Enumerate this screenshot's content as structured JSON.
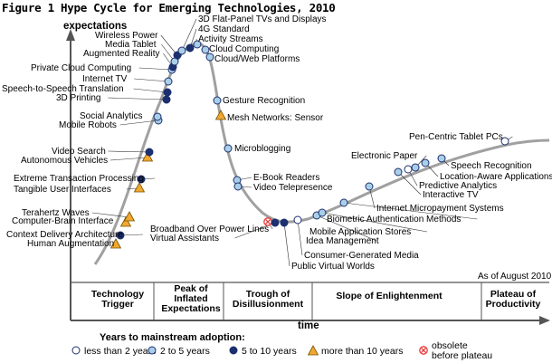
{
  "figure_title": "Figure 1 Hype Cycle for Emerging Technologies, 2010",
  "chart_data": {
    "type": "line",
    "title": "Figure 1 Hype Cycle for Emerging Technologies, 2010",
    "ylabel": "expectations",
    "xlabel": "time",
    "as_of": "As of August 2010",
    "phases": [
      "Technology Trigger",
      "Peak of Inflated Expectations",
      "Trough of Disillusionment",
      "Slope of Enlightenment",
      "Plateau of Productivity"
    ],
    "legend_title": "Years to mainstream adoption:",
    "legend": [
      {
        "key": "lt2",
        "label": "less than 2 years",
        "color": "#ffffff"
      },
      {
        "key": "2to5",
        "label": "2 to 5 years",
        "color": "#a9cfe8"
      },
      {
        "key": "5to10",
        "label": "5 to 10 years",
        "color": "#1c2f6e"
      },
      {
        "key": "gt10",
        "label": "more than 10 years",
        "color": "#f0a830"
      },
      {
        "key": "obsolete",
        "label": "obsolete before plateau",
        "color": "#e83a3a"
      }
    ],
    "series": [
      {
        "label": "Human Augmentation",
        "cat": "gt10"
      },
      {
        "label": "Context Delivery Architecture",
        "cat": "5to10"
      },
      {
        "label": "Computer-Brain Interface",
        "cat": "gt10"
      },
      {
        "label": "Terahertz Waves",
        "cat": "gt10"
      },
      {
        "label": "Tangible User Interfaces",
        "cat": "gt10"
      },
      {
        "label": "Extreme Transaction Processing",
        "cat": "5to10"
      },
      {
        "label": "Autonomous Vehicles",
        "cat": "gt10"
      },
      {
        "label": "Video Search",
        "cat": "5to10"
      },
      {
        "label": "Mobile Robots",
        "cat": "2to5"
      },
      {
        "label": "Social Analytics",
        "cat": "2to5"
      },
      {
        "label": "3D Printing",
        "cat": "5to10"
      },
      {
        "label": "Speech-to-Speech Translation",
        "cat": "5to10"
      },
      {
        "label": "Internet TV",
        "cat": "2to5"
      },
      {
        "label": "Private Cloud Computing",
        "cat": "2to5"
      },
      {
        "label": "Augmented Reality",
        "cat": "5to10"
      },
      {
        "label": "Media Tablet",
        "cat": "2to5"
      },
      {
        "label": "Wireless Power",
        "cat": "5to10"
      },
      {
        "label": "3D Flat-Panel TVs and Displays",
        "cat": "2to5"
      },
      {
        "label": "4G Standard",
        "cat": "5to10"
      },
      {
        "label": "Activity Streams",
        "cat": "2to5"
      },
      {
        "label": "Cloud Computing",
        "cat": "2to5"
      },
      {
        "label": "Cloud/Web Platforms",
        "cat": "2to5"
      },
      {
        "label": "Gesture Recognition",
        "cat": "2to5"
      },
      {
        "label": "Mesh Networks: Sensor",
        "cat": "gt10"
      },
      {
        "label": "Microblogging",
        "cat": "2to5"
      },
      {
        "label": "E-Book Readers",
        "cat": "2to5"
      },
      {
        "label": "Video Telepresence",
        "cat": "2to5"
      },
      {
        "label": "Broadband Over Power Lines",
        "cat": "obsolete"
      },
      {
        "label": "Virtual Assistants",
        "cat": "5to10"
      },
      {
        "label": "Public Virtual Worlds",
        "cat": "5to10"
      },
      {
        "label": "Consumer-Generated Media",
        "cat": "lt2"
      },
      {
        "label": "Idea Management",
        "cat": "2to5"
      },
      {
        "label": "Mobile Application Stores",
        "cat": "2to5"
      },
      {
        "label": "Biometric Authentication Methods",
        "cat": "2to5"
      },
      {
        "label": "Internet Micropayment Systems",
        "cat": "2to5"
      },
      {
        "label": "Interactive TV",
        "cat": "2to5"
      },
      {
        "label": "Predictive Analytics",
        "cat": "lt2"
      },
      {
        "label": "Electronic Paper",
        "cat": "2to5"
      },
      {
        "label": "Location-Aware Applications",
        "cat": "2to5"
      },
      {
        "label": "Speech Recognition",
        "cat": "2to5"
      },
      {
        "label": "Pen-Centric Tablet PCs",
        "cat": "lt2"
      }
    ]
  }
}
